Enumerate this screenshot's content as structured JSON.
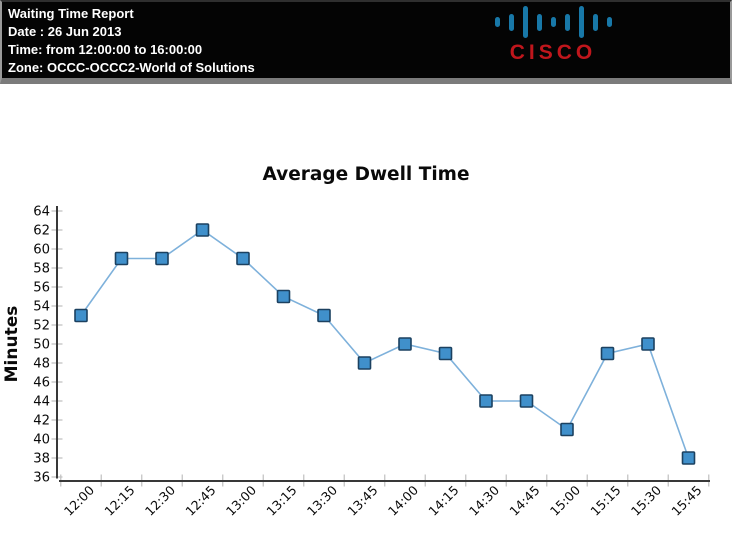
{
  "header": {
    "title": "Waiting Time Report",
    "date": "Date : 26 Jun 2013",
    "time": "Time: from 12:00:00 to 16:00:00",
    "zone": "Zone: OCCC-OCCC2-World of Solutions",
    "logo": {
      "brand": "CISCO",
      "bar_color": "#1878A8",
      "text_color": "#C0161C"
    }
  },
  "chart_data": {
    "type": "line",
    "title": "Average Dwell Time",
    "xlabel": "",
    "ylabel": "Minutes",
    "categories": [
      "12:00",
      "12:15",
      "12:30",
      "12:45",
      "13:00",
      "13:15",
      "13:30",
      "13:45",
      "14:00",
      "14:15",
      "14:30",
      "14:45",
      "15:00",
      "15:15",
      "15:30",
      "15:45"
    ],
    "values": [
      53,
      59,
      59,
      62,
      59,
      55,
      53,
      48,
      50,
      49,
      44,
      44,
      41,
      49,
      50,
      38
    ],
    "ylim": [
      36,
      64
    ],
    "ytick_step": 2,
    "grid": false,
    "legend_position": "none",
    "marker": "square",
    "line_color": "#7EB1DB",
    "marker_fill": "#4090CB",
    "marker_stroke": "#1C4160",
    "axis_color": "#383838",
    "tick_color": "#c4c4c4",
    "text_color": "#0a0a0a"
  }
}
